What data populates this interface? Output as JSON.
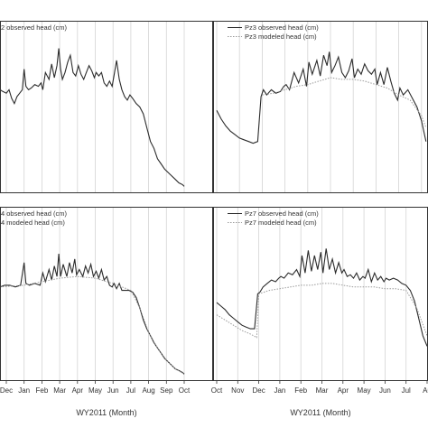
{
  "colors": {
    "observed": "#2b2b2b",
    "modeled": "#9a9a9a",
    "grid": "#d4d4d4",
    "frame": "#333333"
  },
  "chart_data": [
    {
      "type": "line",
      "position": "top-left",
      "legend": "top-right",
      "x_categories": [
        "Oct",
        "Nov",
        "Dec",
        "Jan",
        "Feb",
        "Mar",
        "Apr",
        "May",
        "Jun",
        "Jul",
        "Aug",
        "Sep",
        "Oct"
      ],
      "x_visible_range": [
        1.6,
        12
      ],
      "xlabel": "",
      "y_range": [
        0,
        100
      ],
      "grid": true,
      "series": [
        {
          "name": "2 observed head (cm)",
          "style": "solid",
          "x": [
            1.6,
            1.8,
            2.0,
            2.15,
            2.3,
            2.45,
            2.6,
            2.75,
            2.9,
            3.0,
            3.1,
            3.25,
            3.4,
            3.6,
            3.8,
            3.95,
            4.05,
            4.2,
            4.4,
            4.55,
            4.7,
            4.85,
            4.95,
            5.05,
            5.15,
            5.3,
            5.45,
            5.6,
            5.75,
            5.9,
            6.05,
            6.2,
            6.35,
            6.5,
            6.65,
            6.8,
            6.95,
            7.05,
            7.2,
            7.35,
            7.5,
            7.65,
            7.8,
            7.95,
            8.05,
            8.2,
            8.35,
            8.5,
            8.65,
            8.8,
            8.95,
            9.1,
            9.3,
            9.5,
            9.7,
            9.9,
            10.1,
            10.3,
            10.5,
            10.7,
            10.9,
            11.1,
            11.3,
            11.5,
            11.7,
            11.9,
            12.0
          ],
          "y": [
            60,
            59,
            58,
            60,
            55,
            52,
            56,
            58,
            60,
            72,
            62,
            60,
            61,
            63,
            62,
            64,
            60,
            70,
            66,
            75,
            67,
            74,
            84,
            72,
            66,
            70,
            76,
            80,
            70,
            68,
            74,
            69,
            66,
            70,
            74,
            71,
            67,
            70,
            68,
            70,
            64,
            62,
            65,
            62,
            68,
            77,
            66,
            60,
            56,
            54,
            57,
            55,
            52,
            50,
            46,
            38,
            30,
            26,
            20,
            17,
            14,
            12,
            10,
            8,
            6,
            5,
            4
          ]
        }
      ]
    },
    {
      "type": "line",
      "position": "top-right",
      "legend": "top-right",
      "x_categories": [
        "Oct",
        "Nov",
        "Dec",
        "Jan",
        "Feb",
        "Mar",
        "Apr",
        "May",
        "Jun",
        "Jul",
        "Aug",
        "Sep",
        "Oct"
      ],
      "x_visible_range": [
        0,
        9.2
      ],
      "xlabel": "",
      "y_range": [
        0,
        100
      ],
      "grid": true,
      "series": [
        {
          "name": "Pz3 observed head (cm)",
          "style": "solid",
          "x": [
            0.0,
            0.2,
            0.4,
            0.6,
            0.8,
            1.0,
            1.2,
            1.4,
            1.6,
            1.8,
            1.95,
            2.05,
            2.2,
            2.4,
            2.6,
            2.8,
            2.95,
            3.05,
            3.2,
            3.4,
            3.6,
            3.8,
            3.95,
            4.05,
            4.2,
            4.4,
            4.55,
            4.7,
            4.85,
            4.95,
            5.05,
            5.2,
            5.35,
            5.5,
            5.65,
            5.8,
            5.95,
            6.05,
            6.2,
            6.35,
            6.5,
            6.65,
            6.8,
            6.95,
            7.05,
            7.2,
            7.35,
            7.5,
            7.65,
            7.8,
            7.95,
            8.05,
            8.2,
            8.4,
            8.6,
            8.8,
            9.0,
            9.2
          ],
          "y": [
            48,
            43,
            39,
            36,
            34,
            32,
            31,
            30,
            29,
            30,
            56,
            60,
            57,
            60,
            58,
            59,
            62,
            63,
            60,
            70,
            64,
            72,
            62,
            76,
            69,
            77,
            68,
            80,
            74,
            82,
            70,
            74,
            79,
            70,
            67,
            71,
            78,
            67,
            72,
            69,
            75,
            71,
            69,
            72,
            63,
            70,
            63,
            73,
            65,
            58,
            54,
            61,
            57,
            60,
            55,
            50,
            42,
            30
          ]
        },
        {
          "name": "Pz3 modeled head (cm)",
          "style": "dotted",
          "x": [
            2.0,
            2.5,
            3.0,
            3.5,
            4.0,
            4.5,
            5.0,
            5.5,
            6.0,
            6.5,
            7.0,
            7.5,
            8.0,
            8.5,
            9.0,
            9.2
          ],
          "y": [
            57,
            58,
            60,
            62,
            63,
            65,
            67,
            66,
            66,
            65,
            63,
            61,
            57,
            54,
            45,
            38
          ]
        }
      ]
    },
    {
      "type": "line",
      "position": "bottom-left",
      "legend": "top-left",
      "x_categories": [
        "Oct",
        "Nov",
        "Dec",
        "Jan",
        "Feb",
        "Mar",
        "Apr",
        "May",
        "Jun",
        "Jul",
        "Aug",
        "Sep",
        "Oct"
      ],
      "x_visible_range": [
        1.6,
        12
      ],
      "xlabel": "WY2011 (Month)",
      "y_range": [
        0,
        100
      ],
      "grid": true,
      "series": [
        {
          "name": "4 observed head (cm)",
          "style": "solid",
          "x": [
            1.6,
            1.9,
            2.2,
            2.5,
            2.8,
            3.0,
            3.1,
            3.3,
            3.6,
            3.9,
            4.05,
            4.2,
            4.4,
            4.55,
            4.7,
            4.85,
            4.95,
            5.05,
            5.2,
            5.4,
            5.55,
            5.7,
            5.85,
            5.95,
            6.1,
            6.3,
            6.45,
            6.6,
            6.75,
            6.9,
            7.05,
            7.2,
            7.35,
            7.5,
            7.65,
            7.8,
            7.95,
            8.05,
            8.2,
            8.35,
            8.5,
            8.7,
            8.9,
            9.1,
            9.3,
            9.5,
            9.7,
            9.9,
            10.1,
            10.3,
            10.5,
            10.7,
            10.9,
            11.1,
            11.3,
            11.5,
            11.7,
            11.9,
            12.0
          ],
          "y": [
            54,
            55,
            55,
            54,
            55,
            68,
            56,
            55,
            56,
            55,
            62,
            57,
            64,
            58,
            66,
            60,
            73,
            60,
            67,
            60,
            68,
            62,
            70,
            61,
            64,
            60,
            66,
            62,
            67,
            60,
            63,
            59,
            64,
            58,
            60,
            55,
            54,
            56,
            53,
            56,
            52,
            52,
            52,
            51,
            48,
            42,
            35,
            30,
            26,
            22,
            19,
            16,
            13,
            11,
            9,
            7,
            6,
            5,
            4
          ]
        },
        {
          "name": "4 modeled head (cm)",
          "style": "dotted",
          "x": [
            1.6,
            3.0,
            4.0,
            5.0,
            6.0,
            7.0,
            8.0,
            9.0,
            9.5,
            10.0,
            10.5,
            11.0,
            11.5,
            12.0
          ],
          "y": [
            54,
            55,
            57,
            59,
            60,
            59,
            56,
            52,
            42,
            28,
            19,
            12,
            7,
            4
          ]
        }
      ]
    },
    {
      "type": "line",
      "position": "bottom-right",
      "legend": "top-right",
      "x_categories": [
        "Oct",
        "Nov",
        "Dec",
        "Jan",
        "Feb",
        "Mar",
        "Apr",
        "May",
        "Jun",
        "Jul",
        "Aug",
        "Sep",
        "Oct"
      ],
      "x_tick_labels": [
        "Oct",
        "Nov",
        "Dec",
        "Jan",
        "Feb",
        "Mar",
        "Apr",
        "May",
        "Jun",
        "Jul",
        "Au"
      ],
      "x_visible_range": [
        0,
        10.1
      ],
      "xlabel": "WY2011 (Month)",
      "y_range": [
        0,
        100
      ],
      "grid": true,
      "series": [
        {
          "name": "Pz7 observed head (cm)",
          "style": "solid",
          "x": [
            0.0,
            0.2,
            0.4,
            0.6,
            0.8,
            1.0,
            1.2,
            1.4,
            1.6,
            1.8,
            1.95,
            2.05,
            2.2,
            2.4,
            2.6,
            2.8,
            2.95,
            3.05,
            3.2,
            3.4,
            3.6,
            3.8,
            3.95,
            4.05,
            4.2,
            4.35,
            4.5,
            4.65,
            4.8,
            4.95,
            5.05,
            5.2,
            5.35,
            5.5,
            5.65,
            5.8,
            5.95,
            6.05,
            6.2,
            6.35,
            6.5,
            6.65,
            6.8,
            6.95,
            7.05,
            7.2,
            7.35,
            7.5,
            7.65,
            7.8,
            7.95,
            8.05,
            8.2,
            8.4,
            8.6,
            8.8,
            9.0,
            9.2,
            9.4,
            9.6,
            9.8,
            10.0
          ],
          "y": [
            45,
            43,
            41,
            38,
            36,
            34,
            32,
            31,
            30,
            30,
            50,
            51,
            54,
            56,
            58,
            57,
            59,
            60,
            59,
            62,
            61,
            64,
            60,
            72,
            62,
            75,
            63,
            72,
            64,
            74,
            62,
            76,
            64,
            70,
            62,
            68,
            62,
            64,
            60,
            61,
            59,
            62,
            58,
            60,
            59,
            64,
            57,
            62,
            58,
            60,
            57,
            59,
            58,
            59,
            58,
            56,
            55,
            52,
            46,
            36,
            26,
            20
          ]
        },
        {
          "name": "Pz7 modeled head (cm)",
          "style": "dotted",
          "x": [
            0.0,
            0.4,
            0.8,
            1.2,
            1.6,
            1.9,
            2.0,
            2.5,
            3.0,
            3.5,
            4.0,
            4.5,
            5.0,
            5.5,
            6.0,
            6.5,
            7.0,
            7.5,
            8.0,
            8.5,
            9.0,
            9.5,
            10.0
          ],
          "y": [
            38,
            35,
            32,
            29,
            27,
            25,
            50,
            52,
            53,
            54,
            55,
            55,
            56,
            56,
            55,
            54,
            54,
            54,
            53,
            53,
            52,
            42,
            26
          ]
        }
      ]
    }
  ]
}
